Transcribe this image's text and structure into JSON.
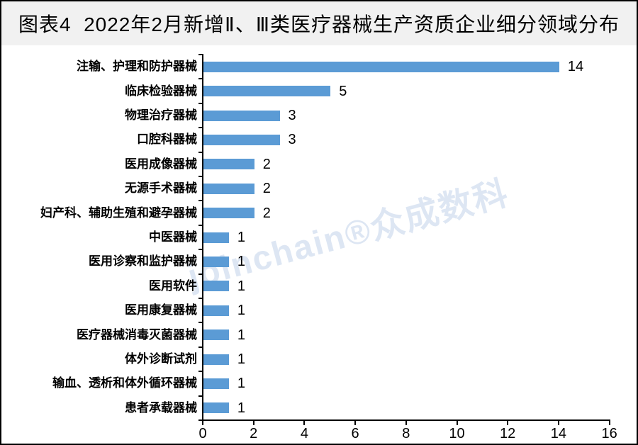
{
  "title": {
    "text": "图表4  2022年2月新增Ⅱ、Ⅲ类医疗器械生产资质企业细分领域分布"
  },
  "watermark": {
    "text": "joinchain®众成数科"
  },
  "chart_data": {
    "type": "bar",
    "orientation": "horizontal",
    "title": "图表4 2022年2月新增Ⅱ、Ⅲ类医疗器械生产资质企业细分领域分布",
    "categories": [
      "注输、护理和防护器械",
      "临床检验器械",
      "物理治疗器械",
      "口腔科器械",
      "医用成像器械",
      "无源手术器械",
      "妇产科、辅助生殖和避孕器械",
      "中医器械",
      "医用诊察和监护器械",
      "医用软件",
      "医用康复器械",
      "医疗器械消毒灭菌器械",
      "体外诊断试剂",
      "输血、透析和体外循环器械",
      "患者承载器械"
    ],
    "values": [
      14,
      5,
      3,
      3,
      2,
      2,
      2,
      1,
      1,
      1,
      1,
      1,
      1,
      1,
      1
    ],
    "xlabel": "",
    "ylabel": "",
    "xlim": [
      0,
      16
    ],
    "x_ticks": [
      0,
      2,
      4,
      6,
      8,
      10,
      12,
      14,
      16
    ],
    "grid": false,
    "legend": "none",
    "value_labels_shown": true
  },
  "colors": {
    "bar": "#5B9BD5",
    "title_band_bg": "#F1F1F1",
    "text": "#000000",
    "watermark": "rgba(100,140,200,0.22)",
    "border": "#000000",
    "background": "#FFFFFF"
  }
}
